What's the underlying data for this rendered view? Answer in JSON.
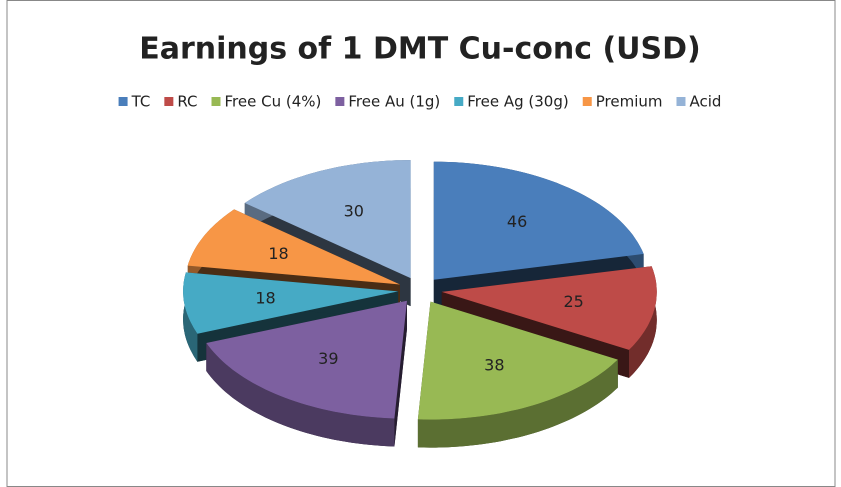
{
  "chart_data": {
    "type": "pie",
    "title": "Earnings of 1 DMT Cu-conc (USD)",
    "categories": [
      "TC",
      "RC",
      "Free Cu (4%)",
      "Free Au (1g)",
      "Free Ag (30g)",
      "Premium",
      "Acid"
    ],
    "values": [
      46,
      25,
      38,
      39,
      18,
      18,
      30
    ],
    "colors": [
      "#4a7ebb",
      "#be4b48",
      "#98b954",
      "#7d60a0",
      "#46aac5",
      "#f79646",
      "#95b3d7"
    ],
    "legend": "top"
  }
}
